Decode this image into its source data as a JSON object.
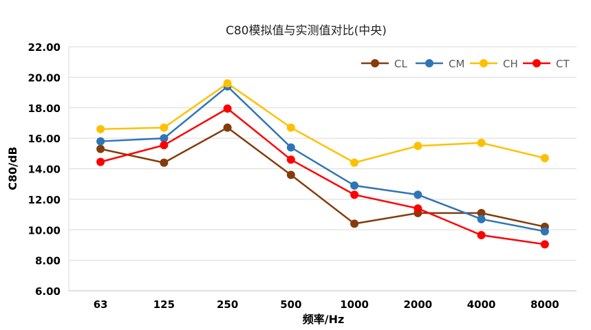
{
  "chart_data": {
    "type": "line",
    "title": "C80模拟值与实测值对比(中央)",
    "xlabel": "频率/Hz",
    "ylabel": "C80/dB",
    "ylim": [
      6,
      22
    ],
    "yticks": [
      "6.00",
      "8.00",
      "10.00",
      "12.00",
      "14.00",
      "16.00",
      "18.00",
      "20.00",
      "22.00"
    ],
    "categories": [
      "63",
      "125",
      "250",
      "500",
      "1000",
      "2000",
      "4000",
      "8000"
    ],
    "grid": true,
    "legend_position": "top-right",
    "series": [
      {
        "name": "CL",
        "color": "#843c0c",
        "values": [
          15.3,
          14.4,
          16.7,
          13.6,
          10.4,
          11.1,
          11.1,
          10.2
        ]
      },
      {
        "name": "CM",
        "color": "#2e75b6",
        "values": [
          15.8,
          16.0,
          19.4,
          15.4,
          12.9,
          12.3,
          10.7,
          9.9
        ]
      },
      {
        "name": "CH",
        "color": "#ffc000",
        "values": [
          16.6,
          16.7,
          19.6,
          16.7,
          14.4,
          15.5,
          15.7,
          14.7
        ]
      },
      {
        "name": "CT",
        "color": "#ff0000",
        "values": [
          14.45,
          15.55,
          17.95,
          14.6,
          12.3,
          11.4,
          9.65,
          9.05
        ]
      }
    ]
  }
}
